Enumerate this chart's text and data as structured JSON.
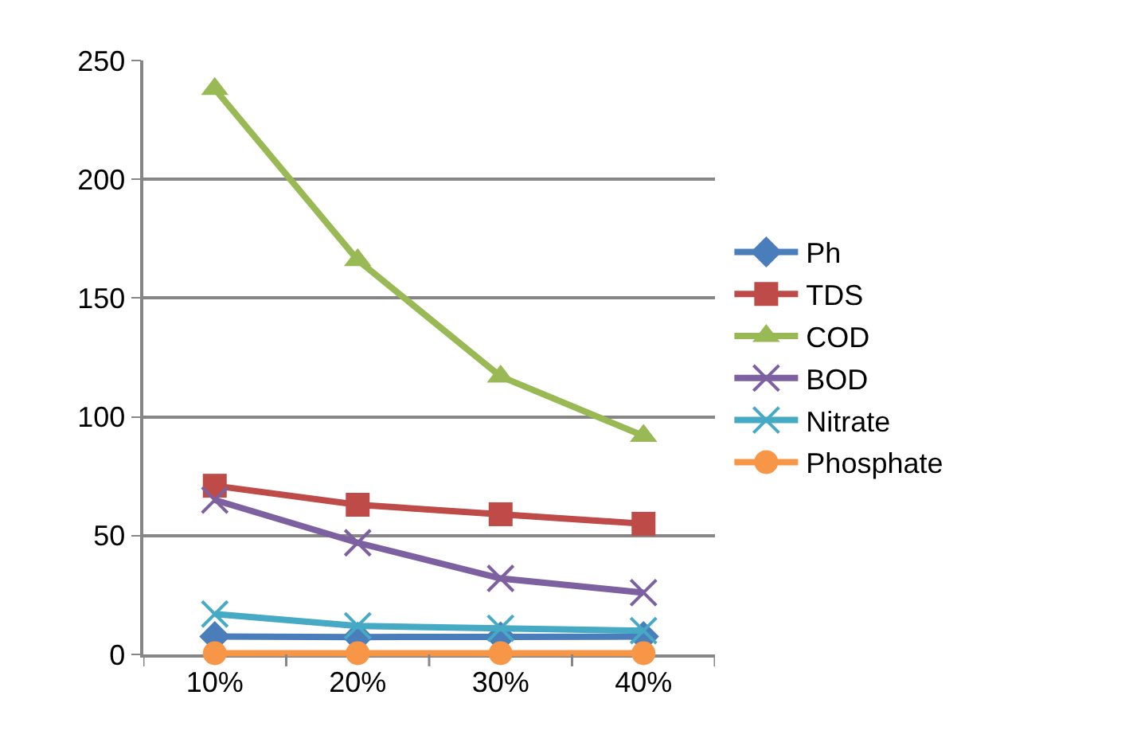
{
  "chart_data": {
    "type": "line",
    "categories": [
      "10%",
      "20%",
      "30%",
      "40%"
    ],
    "ylim": [
      0,
      250
    ],
    "yticks": [
      0,
      50,
      100,
      150,
      200,
      250
    ],
    "grid": "y",
    "legend": "right",
    "series": [
      {
        "name": "Ph",
        "color": "#4a7ebb",
        "marker": "diamond",
        "values": [
          7.5,
          7.3,
          7.4,
          7.5
        ]
      },
      {
        "name": "TDS",
        "color": "#be4b48",
        "marker": "square",
        "values": [
          71,
          63,
          59,
          55
        ]
      },
      {
        "name": "COD",
        "color": "#98b954",
        "marker": "triangle",
        "values": [
          238,
          166,
          117,
          92
        ]
      },
      {
        "name": "BOD",
        "color": "#7d60a0",
        "marker": "cross",
        "values": [
          65,
          47,
          32,
          26
        ]
      },
      {
        "name": "Nitrate",
        "color": "#46aac5",
        "marker": "cross",
        "values": [
          17,
          12,
          11,
          10
        ]
      },
      {
        "name": "Phosphate",
        "color": "#f79646",
        "marker": "circle",
        "values": [
          0.5,
          0.5,
          0.5,
          0.5
        ]
      }
    ]
  }
}
